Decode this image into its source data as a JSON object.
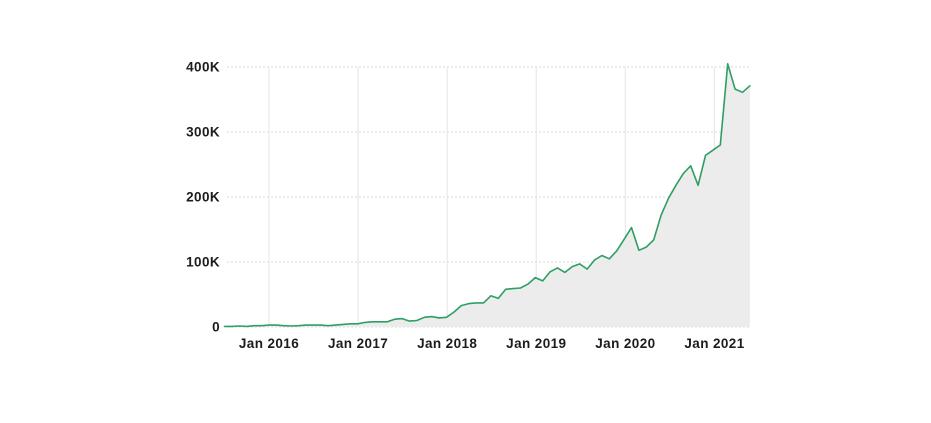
{
  "page": {
    "background_color": "#ffffff"
  },
  "chart_data": {
    "type": "area",
    "title": "",
    "xlabel": "",
    "ylabel": "",
    "ylim": [
      0,
      400
    ],
    "values_unit": "thousands",
    "grid": true,
    "legend": "none",
    "line_color": "#2f9e63",
    "fill_color": "#ececec",
    "grid_color": "#e0e0e0",
    "label_color": "#1c1c1c",
    "y_ticks": [
      "0",
      "100K",
      "200K",
      "300K",
      "400K"
    ],
    "x_ticks": [
      "Jan 2016",
      "Jan 2017",
      "Jan 2018",
      "Jan 2019",
      "Jan 2020",
      "Jan 2021"
    ],
    "x": [
      "Jul 2015",
      "Aug 2015",
      "Sep 2015",
      "Oct 2015",
      "Nov 2015",
      "Dec 2015",
      "Jan 2016",
      "Feb 2016",
      "Mar 2016",
      "Apr 2016",
      "May 2016",
      "Jun 2016",
      "Jul 2016",
      "Aug 2016",
      "Sep 2016",
      "Oct 2016",
      "Nov 2016",
      "Dec 2016",
      "Jan 2017",
      "Feb 2017",
      "Mar 2017",
      "Apr 2017",
      "May 2017",
      "Jun 2017",
      "Jul 2017",
      "Aug 2017",
      "Sep 2017",
      "Oct 2017",
      "Nov 2017",
      "Dec 2017",
      "Jan 2018",
      "Feb 2018",
      "Mar 2018",
      "Apr 2018",
      "May 2018",
      "Jun 2018",
      "Jul 2018",
      "Aug 2018",
      "Sep 2018",
      "Oct 2018",
      "Nov 2018",
      "Dec 2018",
      "Jan 2019",
      "Feb 2019",
      "Mar 2019",
      "Apr 2019",
      "May 2019",
      "Jun 2019",
      "Jul 2019",
      "Aug 2019",
      "Sep 2019",
      "Oct 2019",
      "Nov 2019",
      "Dec 2019",
      "Jan 2020",
      "Feb 2020",
      "Mar 2020",
      "Apr 2020",
      "May 2020",
      "Jun 2020",
      "Jul 2020",
      "Aug 2020",
      "Sep 2020",
      "Oct 2020",
      "Nov 2020",
      "Dec 2020",
      "Jan 2021",
      "Feb 2021",
      "Mar 2021",
      "Apr 2021",
      "May 2021",
      "Jun 2021"
    ],
    "values": [
      1,
      1,
      1.5,
      1,
      2,
      2,
      3,
      3,
      2,
      1.5,
      2,
      3,
      3,
      3,
      2,
      3,
      4,
      5,
      5,
      7,
      8,
      8,
      8,
      12,
      13,
      9,
      10,
      15,
      16,
      14,
      15,
      23,
      33,
      36,
      37,
      37,
      48,
      44,
      58,
      59,
      60,
      66,
      76,
      71,
      85,
      91,
      84,
      93,
      97,
      89,
      103,
      110,
      105,
      117,
      135,
      153,
      118,
      123,
      134,
      172,
      198,
      218,
      236,
      248,
      218,
      264,
      272,
      280,
      405,
      366,
      361,
      371
    ]
  }
}
